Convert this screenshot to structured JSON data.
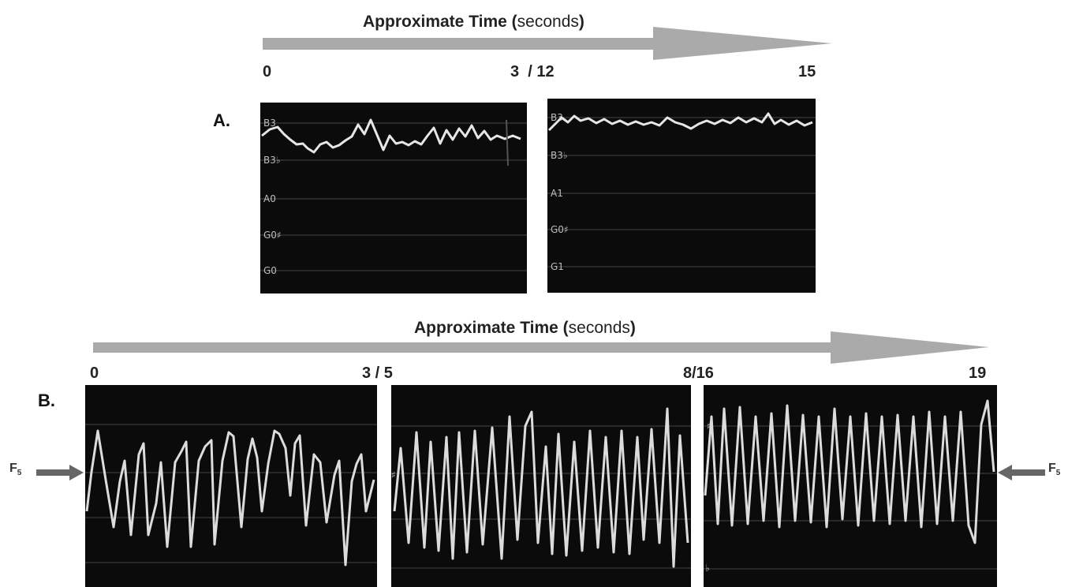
{
  "timeline_a": {
    "title_bold": "Approximate Time (",
    "title_normal": "seconds",
    "title_close": ")",
    "ticks": [
      "0",
      "3  / 12",
      "15"
    ]
  },
  "timeline_b": {
    "title_bold": "Approximate Time (",
    "title_normal": "seconds",
    "title_close": ")",
    "ticks": [
      "0",
      "3 / 5",
      "8/16",
      "19"
    ]
  },
  "labels": {
    "a": "A.",
    "b": "B."
  },
  "panel_a1": {
    "notes": [
      "B3",
      "B3♭",
      "A0",
      "G0♯",
      "G0"
    ]
  },
  "panel_a2": {
    "notes": [
      "B3",
      "B3♭",
      "A1",
      "G0♯",
      "G1"
    ]
  },
  "panel_b2": {
    "notes": [
      "♯"
    ]
  },
  "panel_b3": {
    "notes": [
      "♯",
      "♭"
    ]
  },
  "f5_marker": {
    "letter": "F",
    "subscript": "5"
  },
  "colors": {
    "panel_bg": "#0b0b0b",
    "trace": "#e6e6e6",
    "arrow": "#aaaaaa",
    "gridline": "#444444"
  }
}
